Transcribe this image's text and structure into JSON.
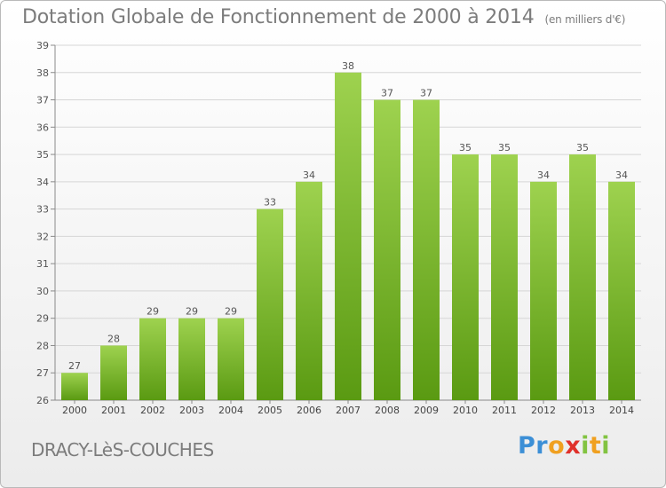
{
  "header": {
    "title": "Dotation Globale de Fonctionnement de 2000 à 2014",
    "subtitle": "(en milliers d'€)"
  },
  "footer": {
    "commune": "DRACY-LèS-COUCHES",
    "logo": {
      "text": "Proxiti",
      "letters": [
        {
          "ch": "P",
          "color": "#3c8fd6"
        },
        {
          "ch": "r",
          "color": "#3c8fd6"
        },
        {
          "ch": "o",
          "color": "#f0a020"
        },
        {
          "ch": "x",
          "color": "#e0302a"
        },
        {
          "ch": "i",
          "color": "#82c341"
        },
        {
          "ch": "t",
          "color": "#f0a020"
        },
        {
          "ch": "i",
          "color": "#82c341"
        }
      ]
    }
  },
  "chart_data": {
    "type": "bar",
    "title": "Dotation Globale de Fonctionnement de 2000 à 2014",
    "subtitle": "(en milliers d'€)",
    "categories": [
      "2000",
      "2001",
      "2002",
      "2003",
      "2004",
      "2005",
      "2006",
      "2007",
      "2008",
      "2009",
      "2010",
      "2011",
      "2012",
      "2013",
      "2014"
    ],
    "values": [
      27,
      28,
      29,
      29,
      29,
      33,
      34,
      38,
      37,
      37,
      35,
      35,
      34,
      35,
      34
    ],
    "data_labels": [
      "27",
      "28",
      "29",
      "29",
      "29",
      "33",
      "34",
      "38",
      "37",
      "37",
      "35",
      "35",
      "34",
      "35",
      "34"
    ],
    "ylim": [
      26,
      39
    ],
    "yticks": [
      26,
      27,
      28,
      29,
      30,
      31,
      32,
      33,
      34,
      35,
      36,
      37,
      38,
      39
    ],
    "grid": true,
    "bar_color_top": "#9ed24f",
    "bar_color_bottom": "#5a9a12",
    "legend": "none"
  }
}
